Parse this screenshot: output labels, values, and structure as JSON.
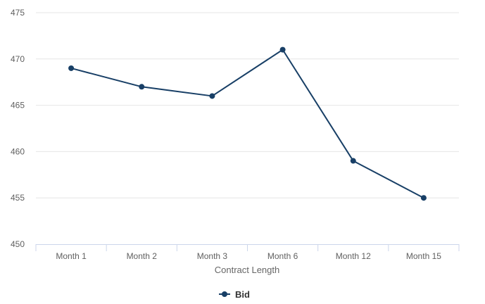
{
  "chart_data": {
    "type": "line",
    "categories": [
      "Month 1",
      "Month 2",
      "Month 3",
      "Month 6",
      "Month 12",
      "Month 15"
    ],
    "series": [
      {
        "name": "Bid",
        "values": [
          469,
          467,
          466,
          471,
          459,
          455
        ],
        "color": "#183f66"
      }
    ],
    "xlabel": "Contract Length",
    "ylabel": "",
    "ylim": [
      450,
      475
    ],
    "yticks": [
      "450",
      "455",
      "460",
      "465",
      "470",
      "475"
    ],
    "grid": true,
    "legend": "bottom-center"
  },
  "colors": {
    "gridline": "#e6e6e6",
    "axis": "#ccd6eb"
  }
}
